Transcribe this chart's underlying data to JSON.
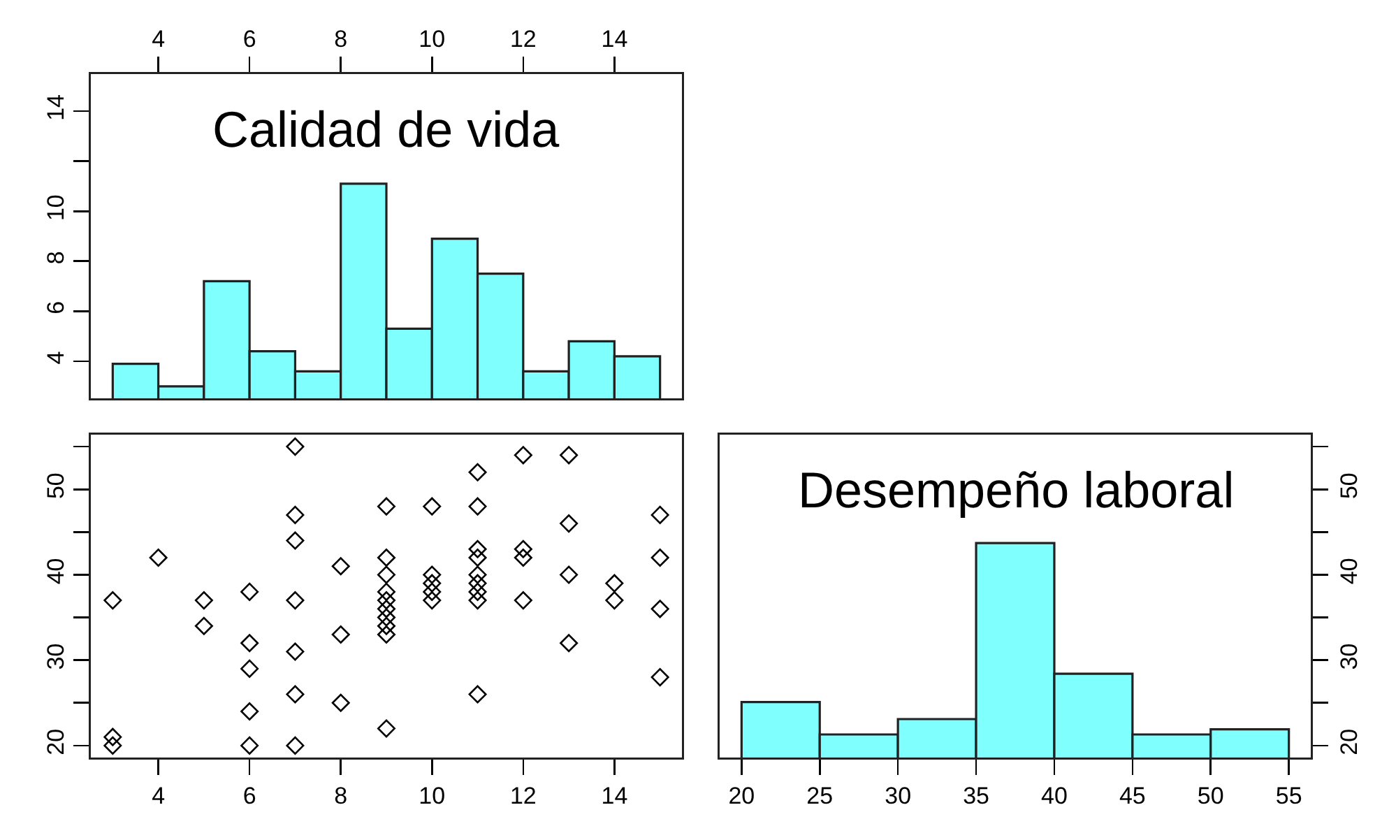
{
  "chart_data": [
    {
      "type": "histogram",
      "title": "Calidad de vida",
      "bins": [
        3,
        4,
        5,
        6,
        7,
        8,
        9,
        10,
        11,
        12,
        13,
        14,
        15
      ],
      "values": [
        3.9,
        3.0,
        7.2,
        4.4,
        3.6,
        11.1,
        5.3,
        8.9,
        7.5,
        3.6,
        4.8,
        4.2
      ],
      "color": "#80ffff",
      "xlim": [
        2.52,
        15.48
      ],
      "xticks": [
        4,
        6,
        8,
        10,
        12,
        14
      ],
      "ylim": [
        2.52,
        15.48
      ],
      "yticks": [
        4,
        6,
        8,
        10,
        {
          "value": 12,
          "label": null
        },
        14
      ]
    },
    {
      "type": "scatter",
      "marker": "diamond",
      "color": "#000000",
      "x": [
        3,
        3,
        3,
        4,
        5,
        5,
        6,
        6,
        6,
        6,
        6,
        7,
        7,
        7,
        7,
        7,
        7,
        7,
        8,
        8,
        8,
        9,
        9,
        9,
        9,
        9,
        9,
        9,
        9,
        9,
        9,
        10,
        10,
        10,
        10,
        10,
        11,
        11,
        11,
        11,
        11,
        11,
        11,
        11,
        11,
        12,
        12,
        12,
        12,
        13,
        13,
        13,
        13,
        14,
        14,
        15,
        15,
        15,
        15
      ],
      "values": [
        37,
        21,
        20,
        42,
        37,
        34,
        38,
        32,
        29,
        24,
        20,
        55,
        47,
        44,
        37,
        31,
        26,
        20,
        41,
        33,
        25,
        48,
        42,
        40,
        38,
        37,
        36,
        35,
        34,
        33,
        22,
        48,
        40,
        39,
        38,
        37,
        52,
        48,
        43,
        42,
        40,
        39,
        38,
        37,
        26,
        54,
        43,
        42,
        37,
        54,
        46,
        40,
        32,
        39,
        37,
        47,
        42,
        36,
        28
      ],
      "xlim": [
        2.52,
        15.48
      ],
      "xticks": [
        4,
        6,
        8,
        10,
        12,
        14
      ],
      "ylim": [
        18.6,
        56.4
      ],
      "yticks": [
        20,
        {
          "value": 25,
          "label": null
        },
        30,
        {
          "value": 35,
          "label": null
        },
        40,
        {
          "value": 45,
          "label": null
        },
        50,
        {
          "value": 55,
          "label": null
        }
      ]
    },
    {
      "type": "histogram",
      "title": "Desempeño laboral",
      "bins": [
        20,
        25,
        30,
        35,
        40,
        45,
        50,
        55
      ],
      "series": [
        {
          "axis": "y2",
          "color": "#80ffff",
          "values": [
            25.1,
            21.3,
            23.1,
            43.7,
            28.4,
            21.3,
            21.9
          ]
        }
      ],
      "xlim": [
        18.6,
        56.4
      ],
      "xticks": [
        20,
        25,
        30,
        35,
        40,
        45,
        50,
        55
      ],
      "y2lim": [
        18.6,
        56.4
      ],
      "y2ticks": [
        20,
        {
          "value": 25,
          "label": null
        },
        30,
        {
          "value": 35,
          "label": null
        },
        40,
        {
          "value": 45,
          "label": null
        },
        50,
        {
          "value": 55,
          "label": null
        }
      ]
    }
  ]
}
